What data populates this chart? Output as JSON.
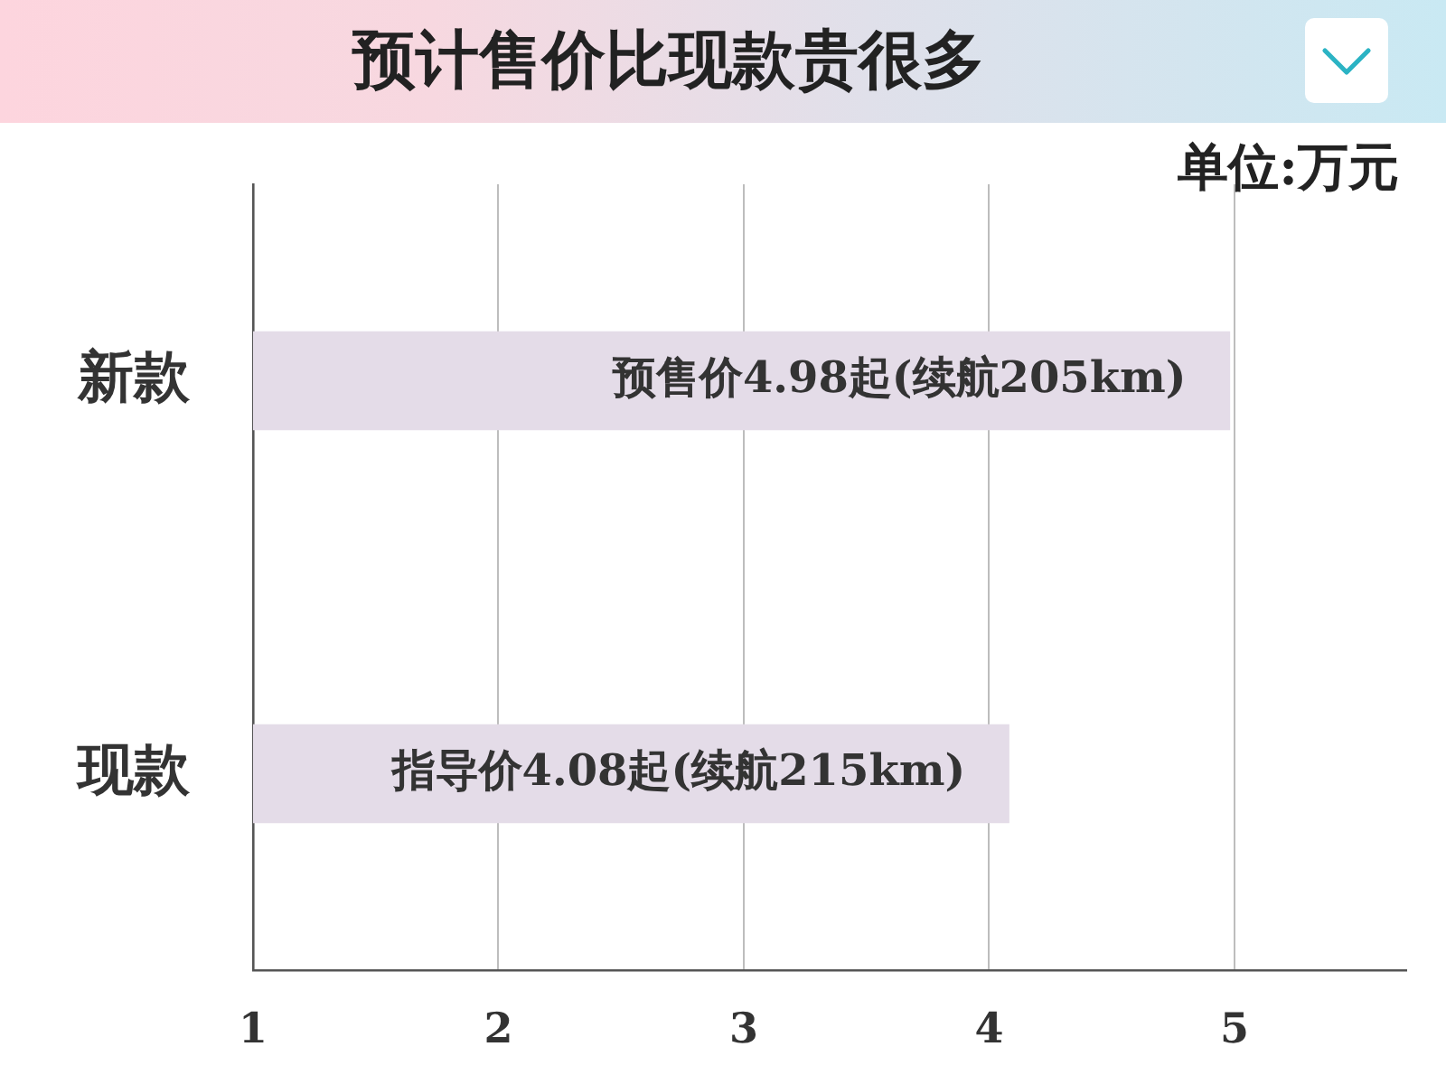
{
  "chart_data": {
    "type": "bar",
    "orientation": "horizontal",
    "title": "预计售价比现款贵很多",
    "annotations": [
      "单位:万元"
    ],
    "categories": [
      "新款",
      "现款"
    ],
    "values": [
      4.98,
      4.08
    ],
    "value_labels": [
      "预售价4.98起(续航205km)",
      "指导价4.08起(续航215km)"
    ],
    "color": "#e4dce8",
    "xlim": [
      1,
      5.7
    ],
    "xticks": [
      1,
      2,
      3,
      4,
      5
    ],
    "grid": "x"
  }
}
